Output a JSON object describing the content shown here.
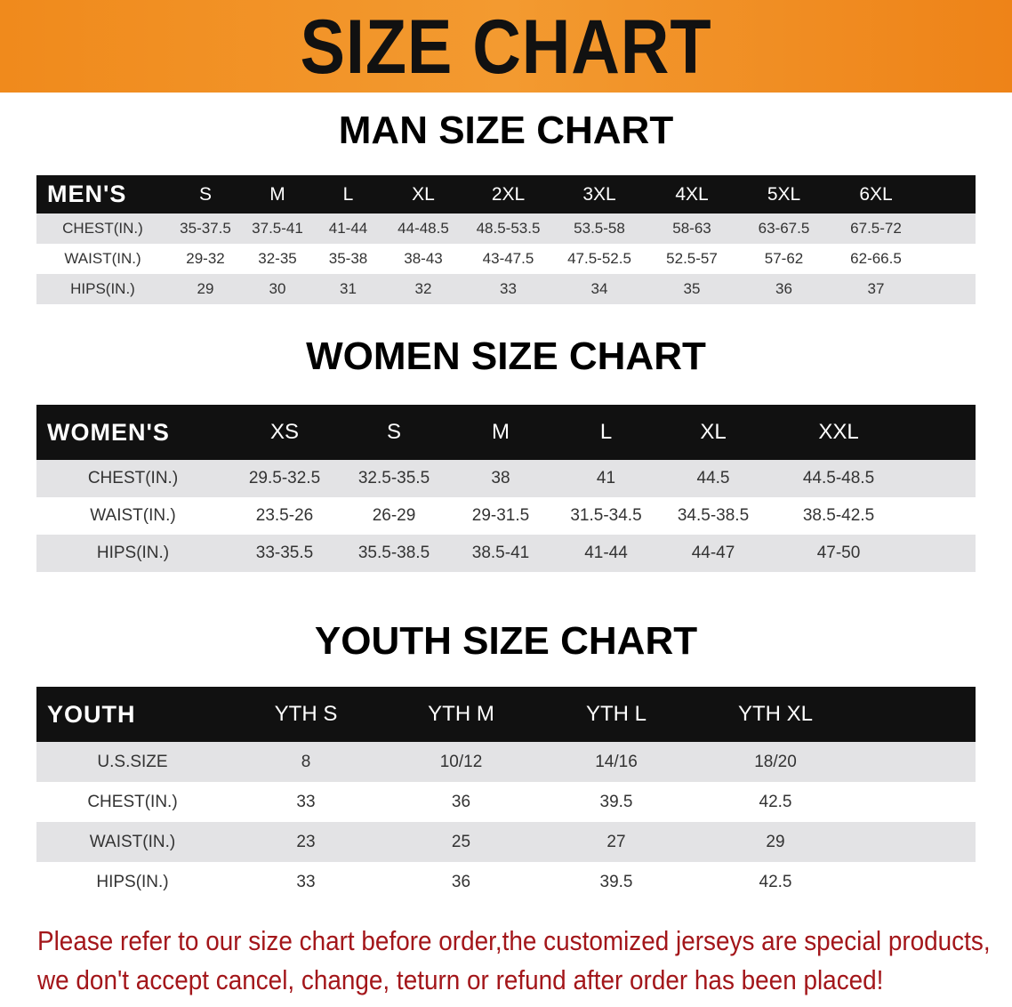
{
  "banner_title": "SIZE CHART",
  "colors": {
    "banner": "#f08a1c",
    "header_row": "#111111",
    "stripe": "#e3e3e5",
    "note": "#a3161a"
  },
  "men": {
    "title": "MAN SIZE CHART",
    "header": [
      "MEN'S",
      "S",
      "M",
      "L",
      "XL",
      "2XL",
      "3XL",
      "4XL",
      "5XL",
      "6XL"
    ],
    "rows": [
      [
        "CHEST(IN.)",
        "35-37.5",
        "37.5-41",
        "41-44",
        "44-48.5",
        "48.5-53.5",
        "53.5-58",
        "58-63",
        "63-67.5",
        "67.5-72"
      ],
      [
        "WAIST(IN.)",
        "29-32",
        "32-35",
        "35-38",
        "38-43",
        "43-47.5",
        "47.5-52.5",
        "52.5-57",
        "57-62",
        "62-66.5"
      ],
      [
        "HIPS(IN.)",
        "29",
        "30",
        "31",
        "32",
        "33",
        "34",
        "35",
        "36",
        "37"
      ]
    ]
  },
  "women": {
    "title": "WOMEN SIZE CHART",
    "header": [
      "WOMEN'S",
      "XS",
      "S",
      "M",
      "L",
      "XL",
      "XXL"
    ],
    "rows": [
      [
        "CHEST(IN.)",
        "29.5-32.5",
        "32.5-35.5",
        "38",
        "41",
        "44.5",
        "44.5-48.5"
      ],
      [
        "WAIST(IN.)",
        "23.5-26",
        "26-29",
        "29-31.5",
        "31.5-34.5",
        "34.5-38.5",
        "38.5-42.5"
      ],
      [
        "HIPS(IN.)",
        "33-35.5",
        "35.5-38.5",
        "38.5-41",
        "41-44",
        "44-47",
        "47-50"
      ]
    ]
  },
  "youth": {
    "title": "YOUTH SIZE CHART",
    "header": [
      "YOUTH",
      "YTH S",
      "YTH M",
      "YTH L",
      "YTH XL"
    ],
    "rows": [
      [
        "U.S.SIZE",
        "8",
        "10/12",
        "14/16",
        "18/20"
      ],
      [
        "CHEST(IN.)",
        "33",
        "36",
        "39.5",
        "42.5"
      ],
      [
        "WAIST(IN.)",
        "23",
        "25",
        "27",
        "29"
      ],
      [
        "HIPS(IN.)",
        "33",
        "36",
        "39.5",
        "42.5"
      ]
    ]
  },
  "note": {
    "line1": "Please refer to our size chart before order,the customized jerseys are special products,",
    "line2": "we don't accept cancel, change, teturn or refund after order has been placed!"
  }
}
